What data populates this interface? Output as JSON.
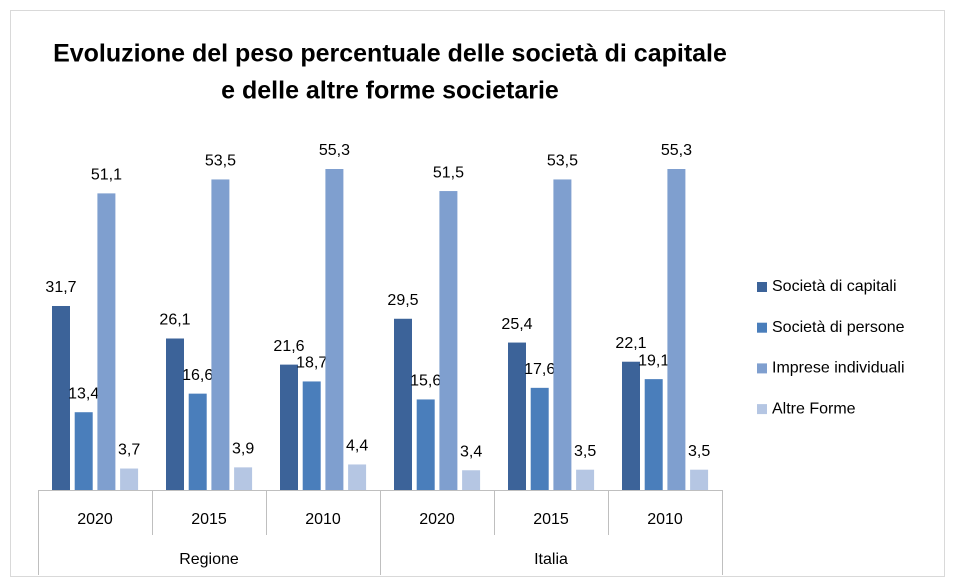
{
  "chart_data": {
    "type": "bar",
    "title": [
      "Evoluzione del peso percentuale delle società di capitale",
      "e delle altre forme societarie"
    ],
    "groups": [
      {
        "name": "Regione",
        "categories": [
          "2020",
          "2015",
          "2010"
        ]
      },
      {
        "name": "Italia",
        "categories": [
          "2020",
          "2015",
          "2010"
        ]
      }
    ],
    "series": [
      {
        "name": "Società di capitali",
        "color": "#3c6399",
        "values": [
          31.7,
          26.1,
          21.6,
          29.5,
          25.4,
          22.1
        ],
        "value_labels": [
          "31,7",
          "26,1",
          "21,6",
          "29,5",
          "25,4",
          "22,1"
        ]
      },
      {
        "name": "Società di persone",
        "color": "#4a7ebb",
        "values": [
          13.4,
          16.6,
          18.7,
          15.6,
          17.6,
          19.1
        ],
        "value_labels": [
          "13,4",
          "16,6",
          "18,7",
          "15,6",
          "17,6",
          "19,1"
        ]
      },
      {
        "name": "Imprese individuali",
        "color": "#7f9fcf",
        "values": [
          51.1,
          53.5,
          55.3,
          51.5,
          53.5,
          55.3
        ],
        "value_labels": [
          "51,1",
          "53,5",
          "55,3",
          "51,5",
          "53,5",
          "55,3"
        ]
      },
      {
        "name": "Altre Forme",
        "color": "#b5c6e3",
        "values": [
          3.7,
          3.9,
          4.4,
          3.4,
          3.5,
          3.5
        ],
        "value_labels": [
          "3,7",
          "3,9",
          "4,4",
          "3,4",
          "3,5",
          "3,5"
        ]
      }
    ],
    "legend": "right"
  }
}
